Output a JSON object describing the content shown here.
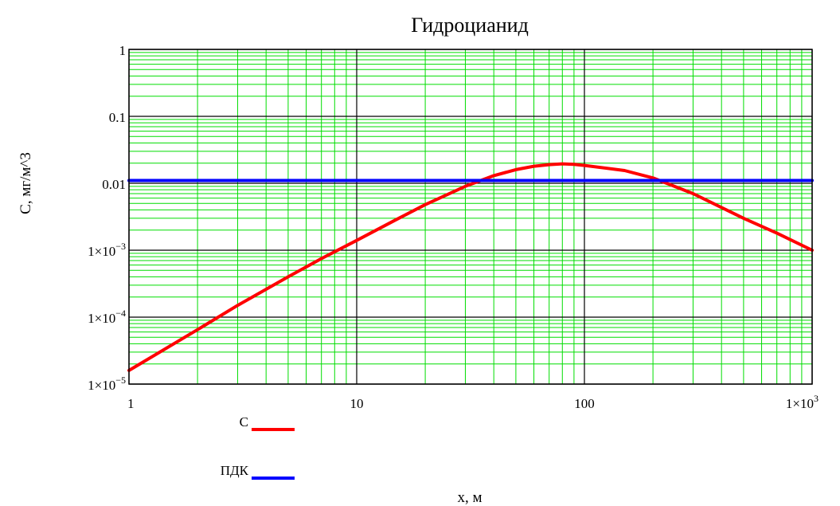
{
  "chart_data": {
    "type": "line",
    "title": "Гидроцианид",
    "xlabel": "x, м",
    "ylabel": "C, мг/м^3",
    "x_scale": "log",
    "y_scale": "log",
    "xlim": [
      1,
      1000
    ],
    "ylim": [
      1e-05,
      1
    ],
    "grid": true,
    "grid_color": "#00dd00",
    "major_grid_color": "#000000",
    "x_ticks": [
      {
        "value": 1,
        "label": "1"
      },
      {
        "value": 10,
        "label": "10"
      },
      {
        "value": 100,
        "label": "100"
      },
      {
        "value": 1000,
        "label": "1×10",
        "exp": "3"
      }
    ],
    "y_ticks": [
      {
        "value": 1,
        "label": "1"
      },
      {
        "value": 0.1,
        "label": "0.1"
      },
      {
        "value": 0.01,
        "label": "0.01"
      },
      {
        "value": 0.001,
        "label": "1×10",
        "exp": "−3"
      },
      {
        "value": 0.0001,
        "label": "1×10",
        "exp": "−4"
      },
      {
        "value": 1e-05,
        "label": "1×10",
        "exp": "−5"
      }
    ],
    "legend_placement": "bottom-left",
    "series": [
      {
        "name": "C",
        "color": "#ff0000",
        "x": [
          1,
          2,
          3,
          5,
          7,
          10,
          15,
          20,
          30,
          40,
          50,
          60,
          70,
          80,
          90,
          100,
          150,
          200,
          300,
          500,
          700,
          1000
        ],
        "y": [
          1.6e-05,
          6.5e-05,
          0.00015,
          0.0004,
          0.00075,
          0.0014,
          0.0029,
          0.0048,
          0.009,
          0.013,
          0.016,
          0.018,
          0.019,
          0.0195,
          0.0192,
          0.0185,
          0.0155,
          0.012,
          0.007,
          0.003,
          0.0018,
          0.001
        ]
      },
      {
        "name": "ПДК",
        "color": "#0000ff",
        "x": [
          1,
          1000
        ],
        "y": [
          0.011,
          0.011
        ]
      }
    ]
  }
}
